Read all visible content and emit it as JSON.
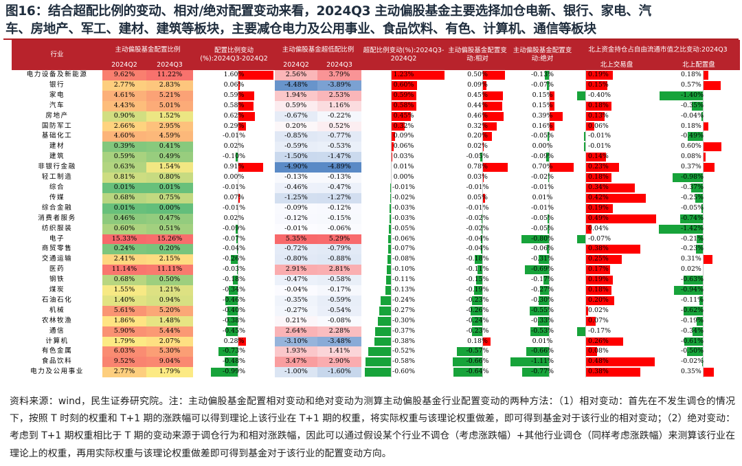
{
  "title": {
    "line1": "图16：结合超配比例的变动、相对/绝对配置变动来看，2024Q3 主动偏股基金主要选择加仓电新、银行、家电、汽",
    "line2": "车、房地产、军工、建材、建筑等板块，主要减仓电力及公用事业、食品饮料、有色、计算机、通信等板块"
  },
  "headers": {
    "industry": "行业",
    "ratio": "主动偏股基金配置比例",
    "ratio_change": "配置比例变动(%):2024Q3-2024Q2",
    "over_ratio": "主动偏股基金超低配比例",
    "over_change": "超配比例变动(%):2024Q3-2024Q2",
    "rel_change": "主动偏股基金配置变动:相对",
    "abs_change": "主动偏股基金配置变动:绝对",
    "north": "北上资金持仓占自由流通市值之比变动:2024Q3",
    "q2": "2024Q2",
    "q3": "2024Q3",
    "north_trade": "北上交易盘",
    "north_alloc": "北上配置盘"
  },
  "colors": {
    "header_bg": "#b8232c",
    "bar_pos": "#ff0000",
    "bar_neg": "#17a33a",
    "heat_high": "#f8696b",
    "heat_mid": "#ffeb84",
    "heat_low": "#63be7b",
    "blue_low": "#5a8ac6",
    "white": "#fcfcff"
  },
  "rows": [
    [
      "电力设备及新能源",
      "9.62%",
      "11.22%",
      "1.60%",
      "2.56%",
      "3.79%",
      "1.23%",
      "0.50%",
      "-0.13%",
      "0.19%",
      "0.18%"
    ],
    [
      "银行",
      "2.77%",
      "2.83%",
      "0.06%",
      "-4.48%",
      "-3.89%",
      "0.60%",
      "0.09%",
      "-0.07%",
      "0.15%",
      "0.57%"
    ],
    [
      "家电",
      "4.61%",
      "5.21%",
      "0.59%",
      "1.94%",
      "2.53%",
      "0.59%",
      "0.45%",
      "0.15%",
      "-0.40%",
      "-1.40%"
    ],
    [
      "汽车",
      "4.43%",
      "5.01%",
      "0.58%",
      "0.59%",
      "1.16%",
      "0.58%",
      "0.44%",
      "0.15%",
      "0.18%",
      "-0.35%"
    ],
    [
      "房地产",
      "0.90%",
      "1.52%",
      "0.62%",
      "-0.67%",
      "-0.22%",
      "0.45%",
      "0.46%",
      "0.39%",
      "0.13%",
      "-0.04%"
    ],
    [
      "国防军工",
      "2.66%",
      "2.95%",
      "0.29%",
      "0.20%",
      "0.52%",
      "0.32%",
      "0.32%",
      "0.16%",
      "0.06%",
      "0.18%"
    ],
    [
      "基础化工",
      "4.60%",
      "4.59%",
      "-0.01%",
      "-0.85%",
      "-0.77%",
      "0.09%",
      "0.20%",
      "-0.05%",
      "-0.01%",
      "-0.49%"
    ],
    [
      "建材",
      "0.39%",
      "0.41%",
      "0.02%",
      "-0.59%",
      "-0.53%",
      "0.06%",
      "0.02%",
      "0.00%",
      "-0.01%",
      "0.60%"
    ],
    [
      "建筑",
      "0.59%",
      "0.49%",
      "-0.10%",
      "-1.50%",
      "-1.47%",
      "0.03%",
      "-0.05%",
      "-0.09%",
      "0.14%",
      "0.08%"
    ],
    [
      "非银行金融",
      "0.63%",
      "1.54%",
      "0.91%",
      "-4.90%",
      "-4.89%",
      "0.01%",
      "0.78%",
      "0.70%",
      "0.23%",
      "0.37%"
    ],
    [
      "轻工制造",
      "0.81%",
      "0.80%",
      "0.00%",
      "-0.13%",
      "-0.13%",
      "0.00%",
      "0.03%",
      "-0.02%",
      "0.18%",
      "-0.98%"
    ],
    [
      "综合",
      "0.01%",
      "0.01%",
      "-0.01%",
      "-0.46%",
      "-0.47%",
      "-0.01%",
      "-0.01%",
      "-0.01%",
      "0.34%",
      "-0.37%"
    ],
    [
      "传媒",
      "0.68%",
      "0.75%",
      "0.07%",
      "-1.25%",
      "-1.27%",
      "-0.02%",
      "0.05%",
      "0.01%",
      "0.42%",
      "-0.25%"
    ],
    [
      "综合金融",
      "0.01%",
      "0.00%",
      "-0.01%",
      "-0.09%",
      "-0.12%",
      "-0.03%",
      "-0.01%",
      "-0.01%",
      "0.19%",
      "-0.05%"
    ],
    [
      "消费者服务",
      "0.46%",
      "0.47%",
      "0.02%",
      "-0.12%",
      "-0.15%",
      "-0.03%",
      "-0.02%",
      "-0.05%",
      "0.49%",
      "-0.74%"
    ],
    [
      "纺织服装",
      "0.60%",
      "0.51%",
      "-0.09%",
      "-0.01%",
      "-0.06%",
      "-0.05%",
      "-0.02%",
      "-0.05%",
      "0.04%",
      "-1.42%"
    ],
    [
      "电子",
      "15.33%",
      "15.26%",
      "-0.07%",
      "5.35%",
      "5.29%",
      "-0.06%",
      "-0.04%",
      "-0.80%",
      "-0.07%",
      "-0.21%"
    ],
    [
      "商贸零售",
      "0.24%",
      "0.20%",
      "-0.04%",
      "-0.72%",
      "-0.79%",
      "-0.07%",
      "-0.04%",
      "-0.06%",
      "0.38%",
      "-0.23%"
    ],
    [
      "交通运输",
      "2.41%",
      "2.15%",
      "-0.26%",
      "-0.80%",
      "-0.88%",
      "-0.08%",
      "-0.18%",
      "-0.31%",
      "0.25%",
      "0.31%"
    ],
    [
      "医药",
      "11.14%",
      "11.11%",
      "-0.03%",
      "2.91%",
      "2.81%",
      "-0.10%",
      "-0.11%",
      "-0.69%",
      "0.17%",
      "0.02%"
    ],
    [
      "钢铁",
      "0.68%",
      "0.50%",
      "-0.18%",
      "-0.47%",
      "-0.58%",
      "-0.11%",
      "-0.15%",
      "-0.17%",
      "0.19%",
      "-0.63%"
    ],
    [
      "煤炭",
      "1.55%",
      "1.21%",
      "-0.34%",
      "-0.04%",
      "-0.17%",
      "-0.13%",
      "-0.19%",
      "-0.27%",
      "0.18%",
      "-0.94%"
    ],
    [
      "石油石化",
      "1.40%",
      "0.94%",
      "-0.46%",
      "-0.35%",
      "-0.59%",
      "-0.24%",
      "-0.23%",
      "-0.30%",
      "0.20%",
      "-0.11%"
    ],
    [
      "机械",
      "5.61%",
      "5.20%",
      "-0.40%",
      "-0.27%",
      "-0.54%",
      "-0.27%",
      "-0.26%",
      "-0.55%",
      "0.02%",
      "-0.62%"
    ],
    [
      "农林牧渔",
      "1.86%",
      "1.48%",
      "-0.38%",
      "0.21%",
      "-0.08%",
      "-0.30%",
      "-0.24%",
      "-0.33%",
      "0.07%",
      "-0.19%"
    ],
    [
      "通信",
      "5.90%",
      "5.44%",
      "-0.45%",
      "2.64%",
      "2.28%",
      "-0.37%",
      "-0.23%",
      "-0.53%",
      "-0.17%",
      "-0.34%"
    ],
    [
      "计算机",
      "1.79%",
      "2.07%",
      "0.28%",
      "-3.10%",
      "-3.48%",
      "-0.38%",
      "0.18%",
      "0.01%",
      "0.26%",
      "-0.61%"
    ],
    [
      "有色金属",
      "6.03%",
      "5.30%",
      "-0.73%",
      "1.93%",
      "1.41%",
      "-0.52%",
      "-0.57%",
      "-0.66%",
      "0.08%",
      "-0.50%"
    ],
    [
      "食品饮料",
      "9.52%",
      "9.04%",
      "-0.48%",
      "3.47%",
      "2.90%",
      "-0.58%",
      "-0.66%",
      "-1.11%",
      "0.48%",
      "-0.02%"
    ],
    [
      "电力及公用事业",
      "2.77%",
      "1.79%",
      "-0.99%",
      "-1.00%",
      "-1.60%",
      "-0.60%",
      "-0.64%",
      "-0.77%",
      "0.38%",
      "0.35%"
    ]
  ],
  "footnote": "资料来源：wind，民生证券研究院。注：主动偏股基金配置相对变动和绝对变动为测算主动偏股基金行业配置变动的两种方法：（1）相对变动：首先在不发生调仓的情况下，按照 T 时刻的权重和 T+1 期的涨跌幅可以得到理论上该行业在 T+1 期的权重，将实际权重与该理论权重做差，即可得到基金对于该行业的相对变动；（2）绝对变动：考虑到 T+1 期权重相比于 T 期的变动来源于调仓行为和相对涨跌幅，因此可以通过假设某个行业不调仓（考虑涨跌幅）+其他行业调仓（同样考虑涨跌幅）来测算该行业在理论上的权重，再用实际权重与该理论权重做差即可得到基金对于该行业的配置变动方向。"
}
